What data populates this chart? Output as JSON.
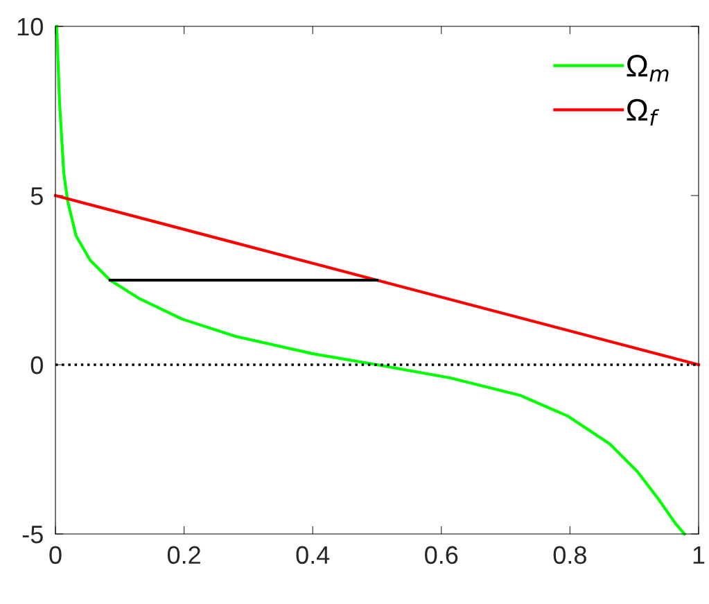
{
  "chart_data": {
    "type": "line",
    "series": [
      {
        "name": "Ω$_{m}$",
        "color": "#00ff00",
        "x": [
          0.002,
          0.0065,
          0.013,
          0.019,
          0.032,
          0.054,
          0.085,
          0.129,
          0.197,
          0.28,
          0.399,
          0.5,
          0.614,
          0.722,
          0.797,
          0.862,
          0.905,
          0.938,
          0.964,
          0.978
        ],
        "values": [
          10,
          7.7,
          5.66,
          4.84,
          3.81,
          3.09,
          2.5,
          1.97,
          1.35,
          0.84,
          0.33,
          0,
          -0.39,
          -0.9,
          -1.52,
          -2.34,
          -3.16,
          -3.98,
          -4.69,
          -5
        ]
      },
      {
        "name": "Ω$_{f}$",
        "color": "#ff0000",
        "x": [
          0,
          1
        ],
        "values": [
          5,
          0
        ]
      },
      {
        "color": "#000000",
        "x": [
          0.085,
          0.5
        ],
        "values": [
          2.5,
          2.5
        ]
      }
    ],
    "ref_lines": [
      {
        "axis": "y",
        "value": 0,
        "color": "#000000",
        "line_style": "dotted"
      }
    ],
    "xlim": [
      0,
      1
    ],
    "xticks": [
      0,
      0.2,
      0.4,
      0.6,
      0.8,
      1
    ],
    "ylim": [
      -5,
      10
    ],
    "yticks": [
      -5,
      0,
      5,
      10
    ],
    "grid": false,
    "legend": "top right",
    "marker": "none",
    "line_style": "solid"
  }
}
